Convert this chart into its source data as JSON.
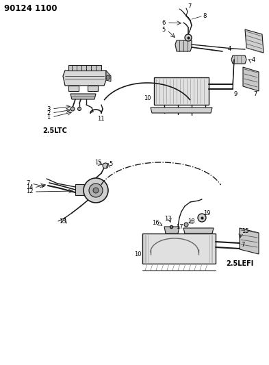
{
  "title": "90124 1100",
  "label_2_5ltc": "2.5LTC",
  "label_2_5lefi": "2.5LEFI",
  "bg_color": "#ffffff",
  "line_color": "#1a1a1a",
  "fig_w": 3.93,
  "fig_h": 5.33,
  "dpi": 100
}
